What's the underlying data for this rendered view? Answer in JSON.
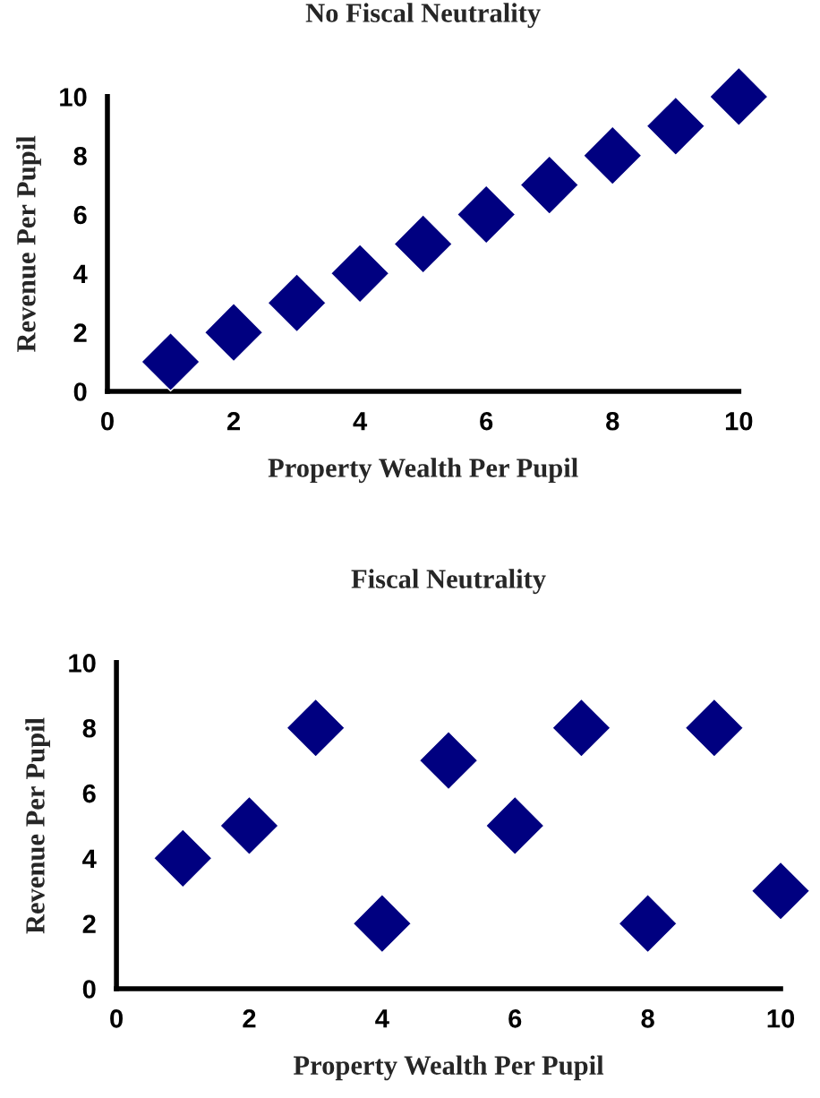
{
  "chart_data": [
    {
      "type": "scatter",
      "title": "No Fiscal Neutrality",
      "xlabel": "Property Wealth Per Pupil",
      "ylabel": "Revenue Per Pupil",
      "x": [
        1,
        2,
        3,
        4,
        5,
        6,
        7,
        8,
        9,
        10
      ],
      "series": [
        {
          "color": "#000080",
          "values": [
            1,
            2,
            3,
            4,
            5,
            6,
            7,
            8,
            9,
            10
          ]
        }
      ],
      "xlim": [
        0,
        10
      ],
      "xticks": [
        0,
        2,
        4,
        6,
        8,
        10
      ],
      "ylim": [
        0,
        10
      ],
      "yticks": [
        0,
        2,
        4,
        6,
        8,
        10
      ],
      "marker": "diamond",
      "grid": false,
      "legend": false
    },
    {
      "type": "scatter",
      "title": "Fiscal Neutrality",
      "xlabel": "Property Wealth Per Pupil",
      "ylabel": "Revenue Per Pupil",
      "x": [
        1,
        2,
        3,
        4,
        5,
        6,
        7,
        8,
        9,
        10
      ],
      "series": [
        {
          "color": "#000080",
          "values": [
            4,
            5,
            8,
            2,
            7,
            5,
            8,
            2,
            8,
            3
          ]
        }
      ],
      "xlim": [
        0,
        10
      ],
      "xticks": [
        0,
        2,
        4,
        6,
        8,
        10
      ],
      "ylim": [
        0,
        10
      ],
      "yticks": [
        0,
        2,
        4,
        6,
        8,
        10
      ],
      "marker": "diamond",
      "grid": false,
      "legend": false
    }
  ]
}
